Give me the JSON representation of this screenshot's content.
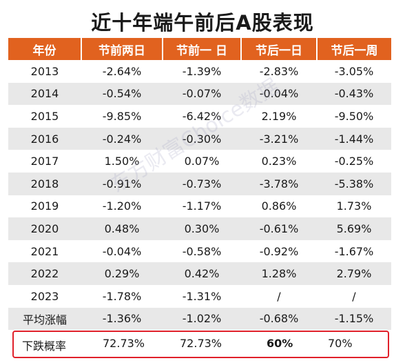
{
  "title": "近十年端午前后A股表现",
  "watermark": "东方财富Choice数据",
  "chart_data": {
    "type": "table",
    "title": "近十年端午前后A股表现",
    "columns": [
      "年份",
      "节前两日",
      "节前一 日",
      "节后一日",
      "节后一周"
    ],
    "rows": [
      {
        "year": "2013",
        "cells": [
          "-2.64%",
          "-1.39%",
          "-2.83%",
          "-3.05%"
        ]
      },
      {
        "year": "2014",
        "cells": [
          "-0.54%",
          "-0.07%",
          "-0.04%",
          "-0.43%"
        ]
      },
      {
        "year": "2015",
        "cells": [
          "-9.85%",
          "-6.42%",
          "2.19%",
          "-9.50%"
        ]
      },
      {
        "year": "2016",
        "cells": [
          "-0.24%",
          "-0.30%",
          "-3.21%",
          "-1.44%"
        ]
      },
      {
        "year": "2017",
        "cells": [
          "1.50%",
          "0.07%",
          "0.23%",
          "-0.25%"
        ]
      },
      {
        "year": "2018",
        "cells": [
          "-0.91%",
          "-0.73%",
          "-3.78%",
          "-5.38%"
        ]
      },
      {
        "year": "2019",
        "cells": [
          "-1.20%",
          "-1.17%",
          "0.86%",
          "1.73%"
        ]
      },
      {
        "year": "2020",
        "cells": [
          "0.48%",
          "0.30%",
          "-0.61%",
          "5.69%"
        ]
      },
      {
        "year": "2021",
        "cells": [
          "-0.04%",
          "-0.58%",
          "-0.92%",
          "-1.67%"
        ]
      },
      {
        "year": "2022",
        "cells": [
          "0.29%",
          "0.42%",
          "1.28%",
          "2.79%"
        ]
      },
      {
        "year": "2023",
        "cells": [
          "-1.78%",
          "-1.31%",
          "/",
          "/"
        ]
      },
      {
        "year": "平均涨幅",
        "cells": [
          "-1.36%",
          "-1.02%",
          "-0.68%",
          "-1.15%"
        ]
      }
    ],
    "probability": {
      "label": "下跌概率",
      "cells": [
        "72.73%",
        "72.73%",
        "60%",
        "70%"
      ]
    },
    "colors": {
      "header_bg": "#e1621f",
      "negative": "#20a040",
      "positive": "#e02020",
      "highlight_border": "#e0202a"
    }
  }
}
